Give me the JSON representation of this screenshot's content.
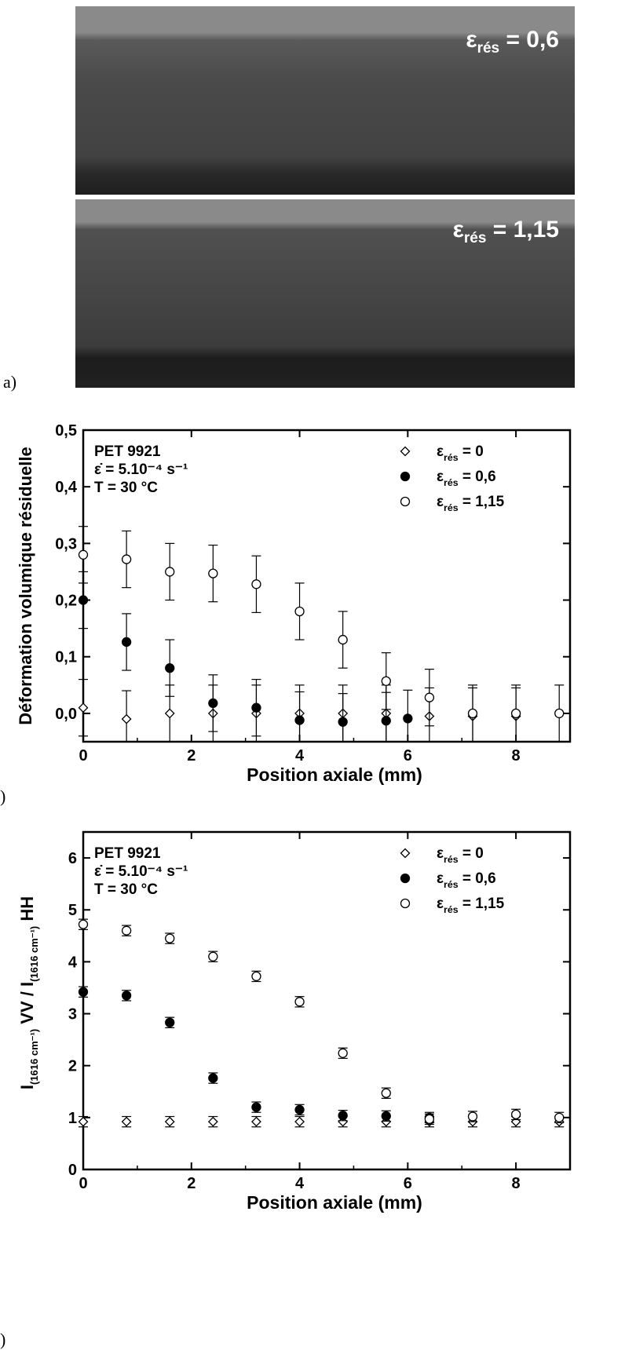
{
  "panel_labels": {
    "a": "a)",
    "b": ")",
    "c": ")"
  },
  "photo": {
    "top_label": {
      "symbol": "ε",
      "sub": "rés",
      "value": "= 0,6"
    },
    "bottom_label": {
      "symbol": "ε",
      "sub": "rés",
      "value": "= 1,15"
    }
  },
  "chart_data": [
    {
      "type": "scatter",
      "ylabel": "Déformation volumique résiduelle",
      "xlabel": "Position axiale (mm)",
      "xlim": [
        0,
        9
      ],
      "ylim": [
        -0.05,
        0.5
      ],
      "xticks": [
        "0",
        "2",
        "4",
        "6",
        "8"
      ],
      "yticks": [
        "0,0",
        "0,1",
        "0,2",
        "0,3",
        "0,4",
        "0,5"
      ],
      "annotation": [
        "PET 9921",
        "ε̇ = 5.10⁻⁴ s⁻¹",
        "T = 30 °C"
      ],
      "legend": [
        {
          "name": "ε",
          "sub": "rés",
          "value": " = 0",
          "marker": "diamond"
        },
        {
          "name": "ε",
          "sub": "rés",
          "value": " = 0,6",
          "marker": "filled"
        },
        {
          "name": "ε",
          "sub": "rés",
          "value": " = 1,15",
          "marker": "open"
        }
      ],
      "series": [
        {
          "marker": "diamond",
          "err": 0.05,
          "x": [
            0,
            0.8,
            1.6,
            2.4,
            3.2,
            4.0,
            4.8,
            5.6,
            6.4,
            7.2,
            8.0
          ],
          "y": [
            0.01,
            -0.01,
            0.0,
            0.0,
            0.0,
            0.0,
            0.0,
            0.0,
            -0.005,
            -0.005,
            -0.005
          ]
        },
        {
          "marker": "filled",
          "err": 0.05,
          "x": [
            0,
            0.8,
            1.6,
            2.4,
            3.2,
            4.0,
            4.8,
            5.6,
            6.0
          ],
          "y": [
            0.2,
            0.126,
            0.08,
            0.018,
            0.01,
            -0.012,
            -0.015,
            -0.013,
            -0.009
          ]
        },
        {
          "marker": "open",
          "err": 0.05,
          "x": [
            0,
            0.8,
            1.6,
            2.4,
            3.2,
            4.0,
            4.8,
            5.6,
            6.4,
            7.2,
            8.0,
            8.8
          ],
          "y": [
            0.28,
            0.272,
            0.25,
            0.247,
            0.228,
            0.18,
            0.13,
            0.057,
            0.028,
            0.0,
            0.0,
            0.0
          ]
        }
      ]
    },
    {
      "type": "scatter",
      "ylabel": "I(1616 cm⁻¹) VV / I(1616 cm⁻¹) HH",
      "xlabel": "Position axiale (mm)",
      "xlim": [
        0,
        9
      ],
      "ylim": [
        0,
        6.5
      ],
      "xticks": [
        "0",
        "2",
        "4",
        "6",
        "8"
      ],
      "yticks": [
        "0",
        "1",
        "2",
        "3",
        "4",
        "5",
        "6"
      ],
      "annotation": [
        "PET 9921",
        "ε̇ = 5.10⁻⁴ s⁻¹",
        "T = 30 °C"
      ],
      "legend": [
        {
          "name": "ε",
          "sub": "rés",
          "value": " = 0",
          "marker": "diamond"
        },
        {
          "name": "ε",
          "sub": "rés",
          "value": " = 0,6",
          "marker": "filled"
        },
        {
          "name": "ε",
          "sub": "rés",
          "value": " = 1,15",
          "marker": "open"
        }
      ],
      "series": [
        {
          "marker": "diamond",
          "err": 0.1,
          "x": [
            0,
            0.8,
            1.6,
            2.4,
            3.2,
            4.0,
            4.8,
            5.6,
            6.4,
            7.2,
            8.0,
            8.8
          ],
          "y": [
            0.92,
            0.92,
            0.92,
            0.92,
            0.92,
            0.92,
            0.92,
            0.92,
            0.92,
            0.92,
            0.92,
            0.92
          ]
        },
        {
          "marker": "filled",
          "err": 0.1,
          "x": [
            0,
            0.8,
            1.6,
            2.4,
            3.2,
            4.0,
            4.8,
            5.6,
            6.4
          ],
          "y": [
            3.42,
            3.35,
            2.83,
            1.76,
            1.2,
            1.15,
            1.04,
            1.03,
            1.0
          ]
        },
        {
          "marker": "open",
          "err": 0.1,
          "x": [
            0,
            0.8,
            1.6,
            2.4,
            3.2,
            4.0,
            4.8,
            5.6,
            6.4,
            7.2,
            8.0,
            8.8
          ],
          "y": [
            4.72,
            4.6,
            4.45,
            4.1,
            3.72,
            3.23,
            2.24,
            1.47,
            0.97,
            1.02,
            1.06,
            1.0
          ]
        }
      ]
    }
  ]
}
